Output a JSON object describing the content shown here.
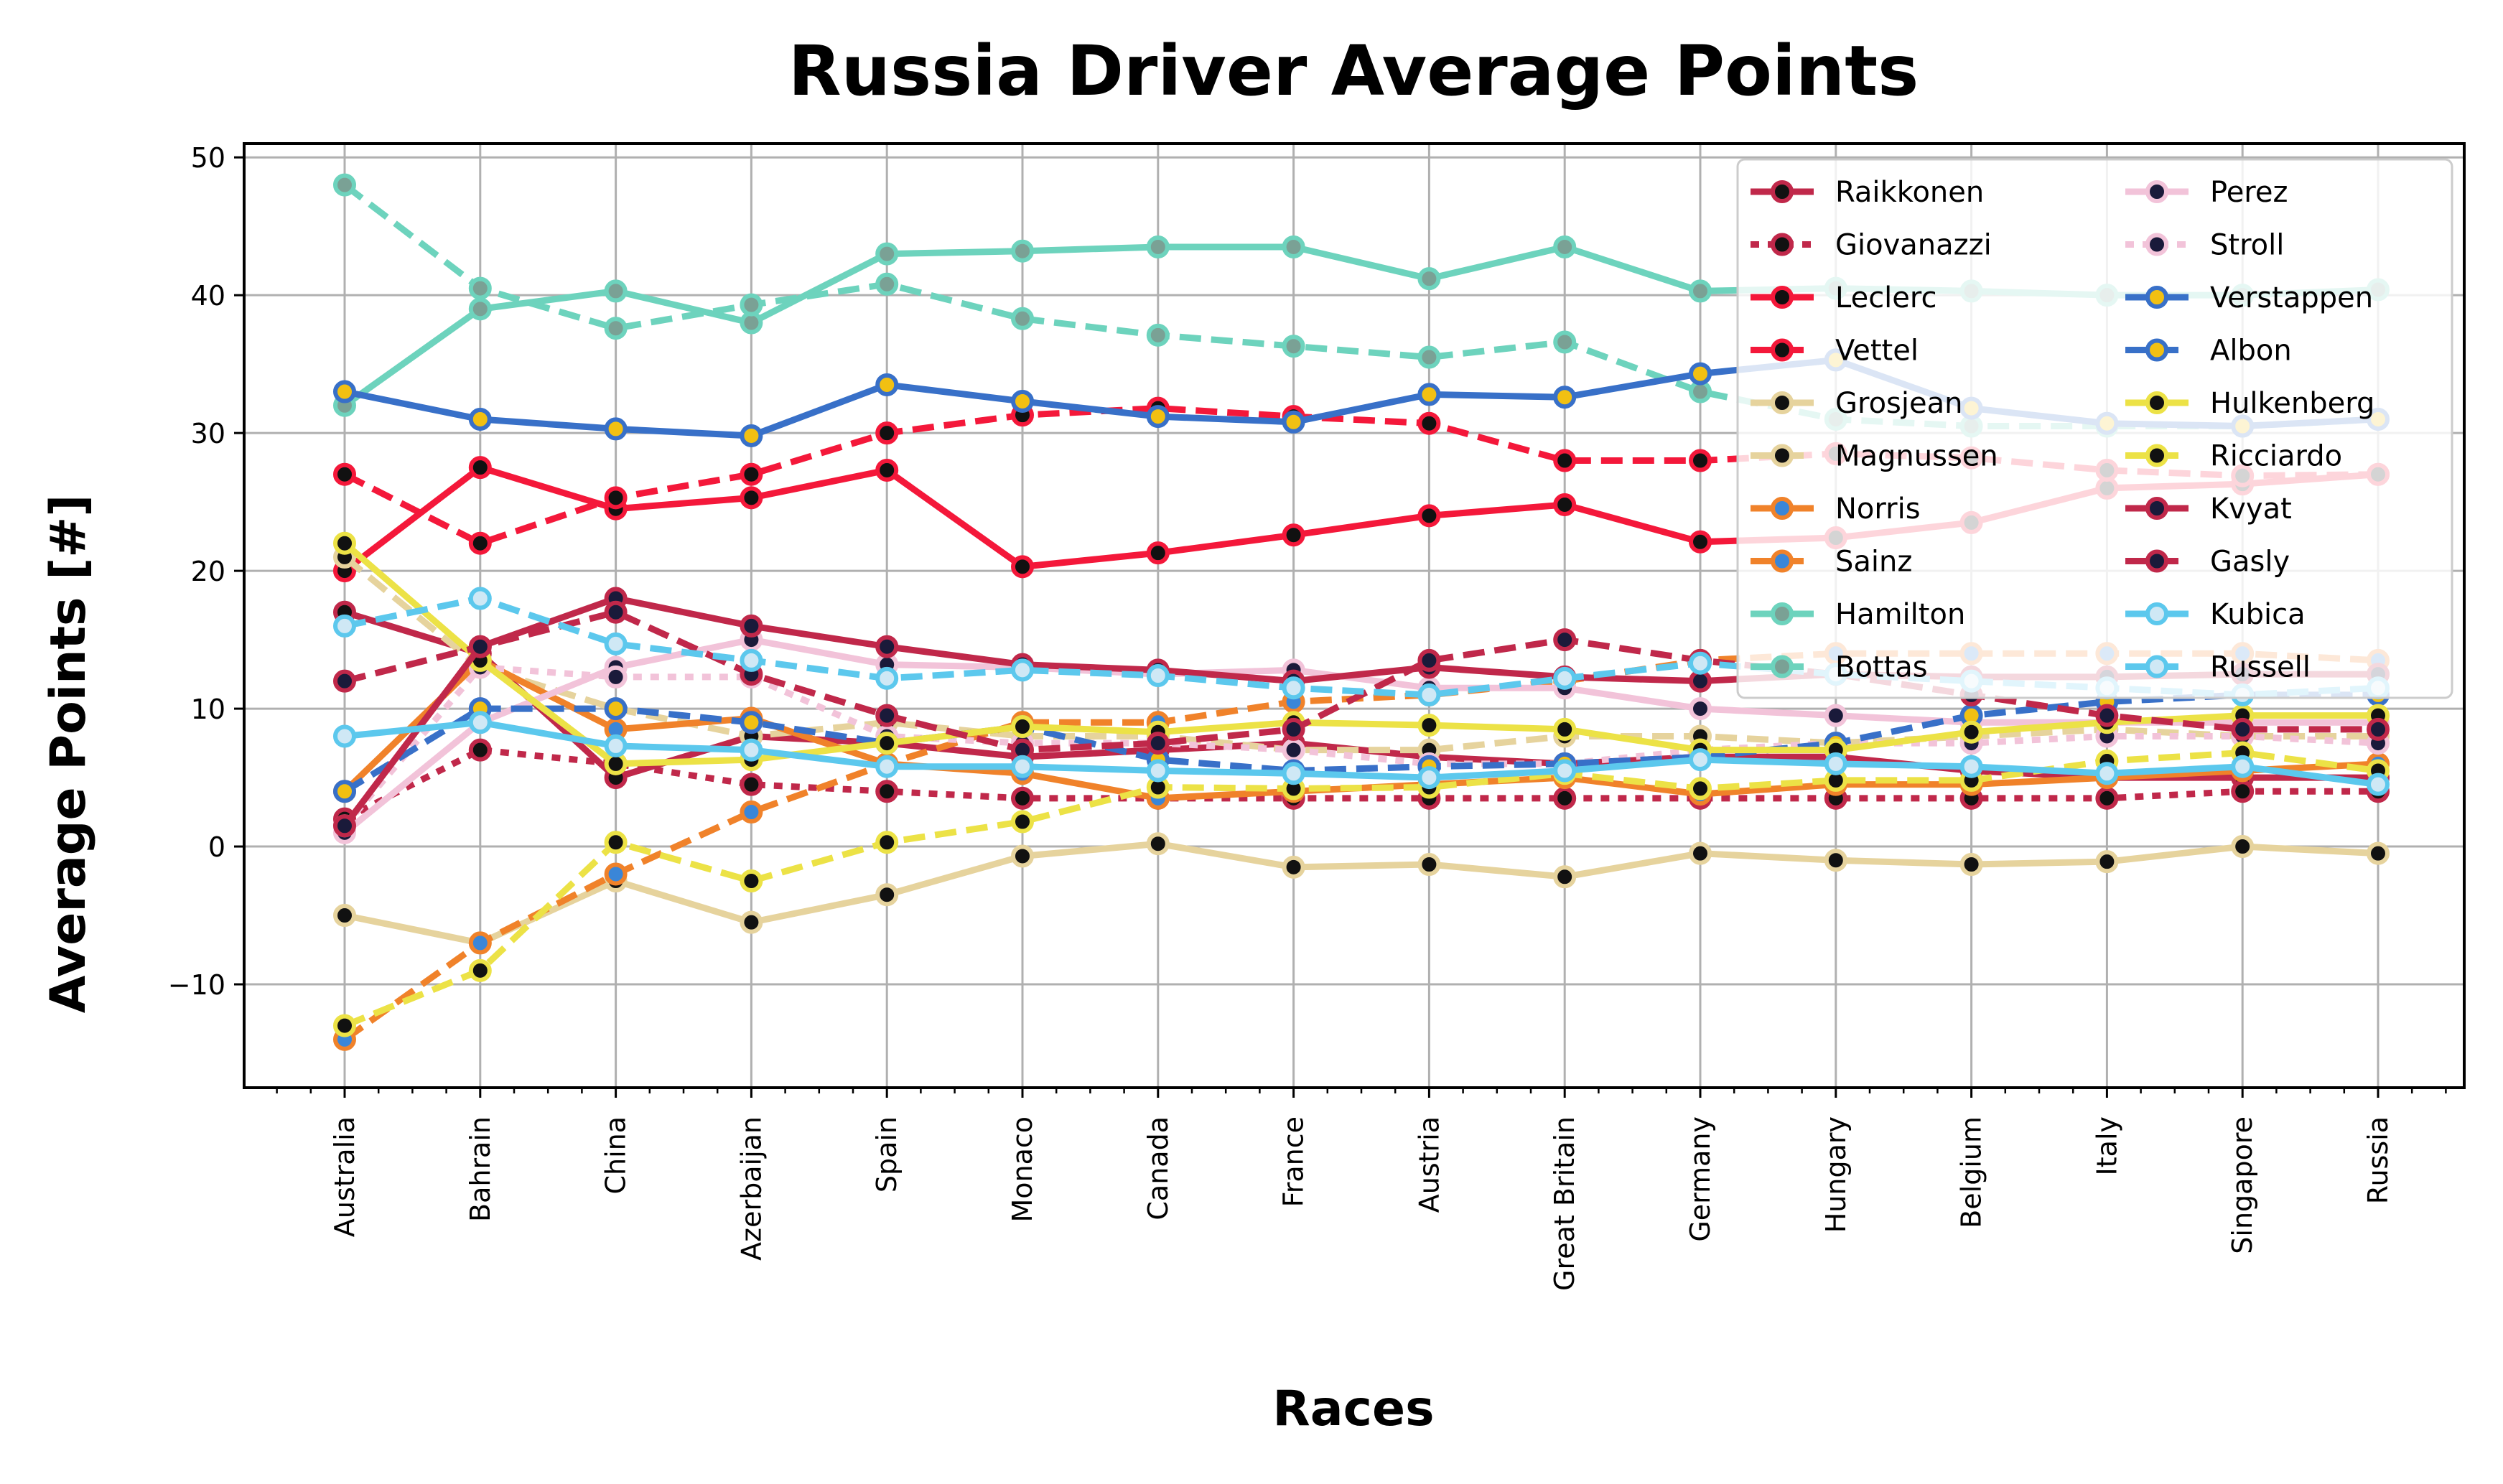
{
  "chart_data": {
    "type": "line",
    "title": "Russia Driver Average Points",
    "xlabel": "Races",
    "ylabel": "Average Points [#]",
    "ylim": [
      -17.5,
      51
    ],
    "grid": true,
    "legend_position": "top-right",
    "legend_columns": 2,
    "categories": [
      "Australia",
      "Bahrain",
      "China",
      "Azerbaijan",
      "Spain",
      "Monaco",
      "Canada",
      "France",
      "Austria",
      "Great Britain",
      "Germany",
      "Hungary",
      "Belgium",
      "Italy",
      "Singapore",
      "Russia"
    ],
    "y_ticks": [
      -10,
      0,
      10,
      20,
      30,
      40,
      50
    ],
    "series": [
      {
        "name": "Raikkonen",
        "line_color": "#c0284a",
        "marker_face": "#111111",
        "dash": "solid",
        "values": [
          17,
          14,
          5,
          8,
          7.5,
          6.5,
          7,
          7.5,
          6.5,
          6,
          6.5,
          6.5,
          5.5,
          5,
          5,
          5
        ]
      },
      {
        "name": "Giovanazzi",
        "line_color": "#c0284a",
        "marker_face": "#111111",
        "dash": "dotted",
        "values": [
          2,
          7,
          6,
          4.5,
          4,
          3.5,
          3.5,
          3.5,
          3.5,
          3.5,
          3.5,
          3.5,
          3.5,
          3.5,
          4,
          4
        ]
      },
      {
        "name": "Leclerc",
        "line_color": "#f4183a",
        "marker_face": "#111111",
        "dash": "solid",
        "values": [
          20,
          27.5,
          24.5,
          25.3,
          27.3,
          20.3,
          21.3,
          22.6,
          24,
          24.8,
          22.1,
          22.4,
          23.5,
          26,
          26.3,
          27
        ]
      },
      {
        "name": "Vettel",
        "line_color": "#f4183a",
        "marker_face": "#111111",
        "dash": "dashed",
        "values": [
          27,
          22,
          25.3,
          27,
          30,
          31.3,
          31.8,
          31.2,
          30.7,
          28,
          28,
          28.5,
          28.2,
          27.3,
          26.9,
          27
        ]
      },
      {
        "name": "Grosjean",
        "line_color": "#e6d39d",
        "marker_face": "#111111",
        "dash": "solid",
        "values": [
          -5,
          -7,
          -2.5,
          -5.5,
          -3.5,
          -0.7,
          0.2,
          -1.5,
          -1.3,
          -2.2,
          -0.5,
          -1,
          -1.3,
          -1.1,
          0,
          -0.5
        ]
      },
      {
        "name": "Magnussen",
        "line_color": "#e6d39d",
        "marker_face": "#111111",
        "dash": "dashed",
        "values": [
          21,
          13,
          10,
          8,
          9,
          8,
          8,
          7,
          7,
          8,
          8,
          7.5,
          8,
          8.5,
          8,
          8
        ]
      },
      {
        "name": "Norris",
        "line_color": "#f0822a",
        "marker_face": "#3a86d8",
        "dash": "solid",
        "values": [
          4,
          13.5,
          8.5,
          9.3,
          6,
          5.3,
          3.5,
          4,
          4.5,
          5,
          3.8,
          4.5,
          4.5,
          5,
          5.5,
          6
        ]
      },
      {
        "name": "Sainz",
        "line_color": "#f0822a",
        "marker_face": "#3a86d8",
        "dash": "dashed",
        "values": [
          -14,
          -7,
          -2,
          2.5,
          6,
          9,
          9,
          10.5,
          11,
          12,
          13.5,
          14,
          14,
          14,
          14,
          13.5
        ]
      },
      {
        "name": "Hamilton",
        "line_color": "#6dd3bd",
        "marker_face": "#7aa195",
        "dash": "solid",
        "values": [
          32,
          39,
          40.3,
          38,
          43,
          43.2,
          43.5,
          43.5,
          41.2,
          43.5,
          40.3,
          40.5,
          40.3,
          40,
          40,
          40.4
        ]
      },
      {
        "name": "Bottas",
        "line_color": "#6dd3bd",
        "marker_face": "#7aa195",
        "dash": "dashed",
        "values": [
          48,
          40.5,
          37.6,
          39.3,
          40.8,
          38.3,
          37.1,
          36.3,
          35.5,
          36.6,
          33,
          31,
          30.5,
          30.5,
          30.5,
          31
        ]
      },
      {
        "name": "Perez",
        "line_color": "#f2c3d9",
        "marker_face": "#1a1a3a",
        "dash": "solid",
        "values": [
          1,
          9,
          13,
          15,
          13.2,
          13,
          12.5,
          12.8,
          11.5,
          11.5,
          10,
          9.5,
          9,
          9,
          9,
          9
        ]
      },
      {
        "name": "Stroll",
        "line_color": "#f2c3d9",
        "marker_face": "#1a1a3a",
        "dash": "dotted",
        "values": [
          1.5,
          13,
          12.3,
          12.3,
          8,
          7.5,
          7.5,
          7,
          6,
          6,
          7,
          7.5,
          7.5,
          8,
          8,
          7.5
        ]
      },
      {
        "name": "Verstappen",
        "line_color": "#3870c8",
        "marker_face": "#f2c012",
        "dash": "solid",
        "values": [
          33,
          31,
          30.3,
          29.8,
          33.5,
          32.3,
          31.2,
          30.8,
          32.8,
          32.6,
          34.3,
          35.3,
          31.8,
          30.7,
          30.5,
          31
        ]
      },
      {
        "name": "Albon",
        "line_color": "#3870c8",
        "marker_face": "#f2c012",
        "dash": "dashed",
        "values": [
          4,
          10,
          10,
          9,
          7.5,
          8.7,
          6.3,
          5.5,
          5.8,
          6,
          6.5,
          7.5,
          9.5,
          10.5,
          11,
          11
        ]
      },
      {
        "name": "Hulkenberg",
        "line_color": "#ece246",
        "marker_face": "#111111",
        "dash": "solid",
        "values": [
          22,
          13.5,
          6,
          6.3,
          7.5,
          8.7,
          8.3,
          9,
          8.8,
          8.5,
          7,
          7,
          8.3,
          9,
          9.5,
          9.5
        ]
      },
      {
        "name": "Ricciardo",
        "line_color": "#ece246",
        "marker_face": "#111111",
        "dash": "dashed",
        "values": [
          -13,
          -9,
          0.3,
          -2.5,
          0.3,
          1.8,
          4.3,
          4.2,
          4.3,
          5.3,
          4.2,
          4.8,
          4.8,
          6.2,
          6.8,
          5.5
        ]
      },
      {
        "name": "Kvyat",
        "line_color": "#c0284a",
        "marker_face": "#1a1a3a",
        "dash": "solid",
        "values": [
          1.5,
          14.5,
          18,
          16,
          14.5,
          13.2,
          12.8,
          12,
          13,
          12.3,
          12,
          12.5,
          12.3,
          12.3,
          12.5,
          12.5
        ]
      },
      {
        "name": "Gasly",
        "line_color": "#c0284a",
        "marker_face": "#1a1a3a",
        "dash": "dashed",
        "values": [
          12,
          14.5,
          17,
          12.5,
          9.5,
          7,
          7.5,
          8.5,
          13.5,
          15,
          13.5,
          12.5,
          11,
          9.5,
          8.5,
          8.5
        ]
      },
      {
        "name": "Kubica",
        "line_color": "#5cc8ed",
        "marker_face": "#cfe8f5",
        "dash": "solid",
        "values": [
          8,
          9,
          7.3,
          7,
          5.8,
          5.8,
          5.5,
          5.3,
          5,
          5.5,
          6.3,
          6,
          5.8,
          5.3,
          5.8,
          4.5
        ]
      },
      {
        "name": "Russell",
        "line_color": "#5cc8ed",
        "marker_face": "#cfe8f5",
        "dash": "dashed",
        "values": [
          16,
          18,
          14.7,
          13.5,
          12.2,
          12.8,
          12.4,
          11.5,
          11,
          12.2,
          13.3,
          12.5,
          12,
          11.5,
          11,
          11.5
        ]
      }
    ]
  }
}
